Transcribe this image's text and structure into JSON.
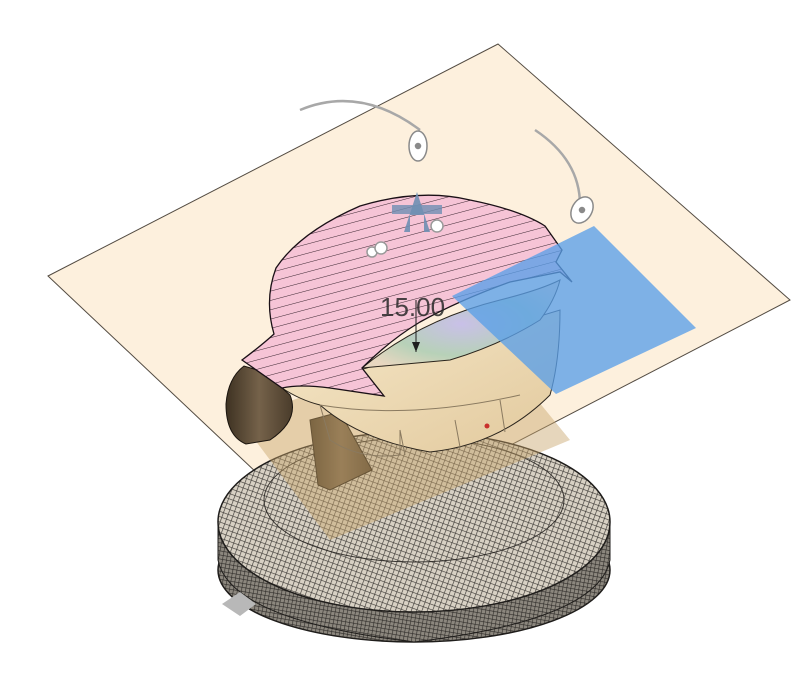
{
  "viewport": {
    "dimension_value": "15.00",
    "colors": {
      "background": "#ffffff",
      "section_plane": "#fdf0dc",
      "section_hatch_fill": "#f6c4d6",
      "hatch_line": "#3a2530",
      "body_tan": "#efdcb8",
      "handle_dark": "#5e4e38",
      "mesh_base": "#55514b",
      "selection_blue": "#5a9fe8",
      "manipulator_gray": "#9a9a9a",
      "axis_arrow_blue": "#6f8fb3"
    },
    "icons": [
      "rotation-manipulator-icon",
      "scale-handle-icon",
      "move-arrow-icon"
    ]
  }
}
